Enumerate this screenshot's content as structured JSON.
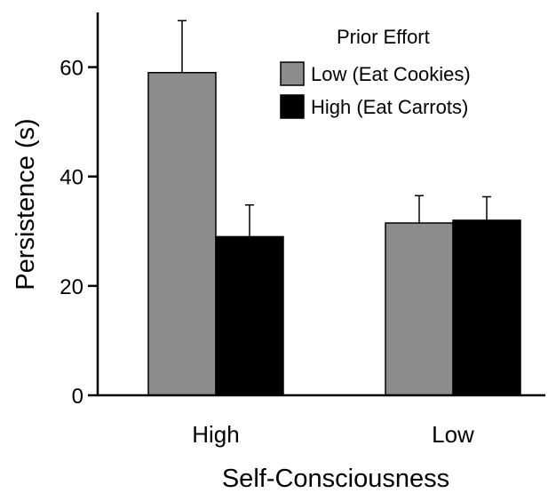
{
  "chart_data": {
    "type": "bar",
    "title": "",
    "xlabel": "Self-Consciousness",
    "ylabel": "Persistence (s)",
    "categories": [
      "High",
      "Low"
    ],
    "ylim": [
      0,
      70
    ],
    "yticks": [
      "0",
      "20",
      "40",
      "60"
    ],
    "grid": false,
    "legend": {
      "title": "Prior Effort",
      "placement": "top-right"
    },
    "series": [
      {
        "name": "Low (Eat Cookies)",
        "color": "#8c8c8c",
        "values": [
          59,
          31.5
        ],
        "error": [
          9.5,
          5
        ]
      },
      {
        "name": "High (Eat Carrots)",
        "color": "#000000",
        "values": [
          29,
          32
        ],
        "error": [
          5.8,
          4.3
        ]
      }
    ]
  }
}
